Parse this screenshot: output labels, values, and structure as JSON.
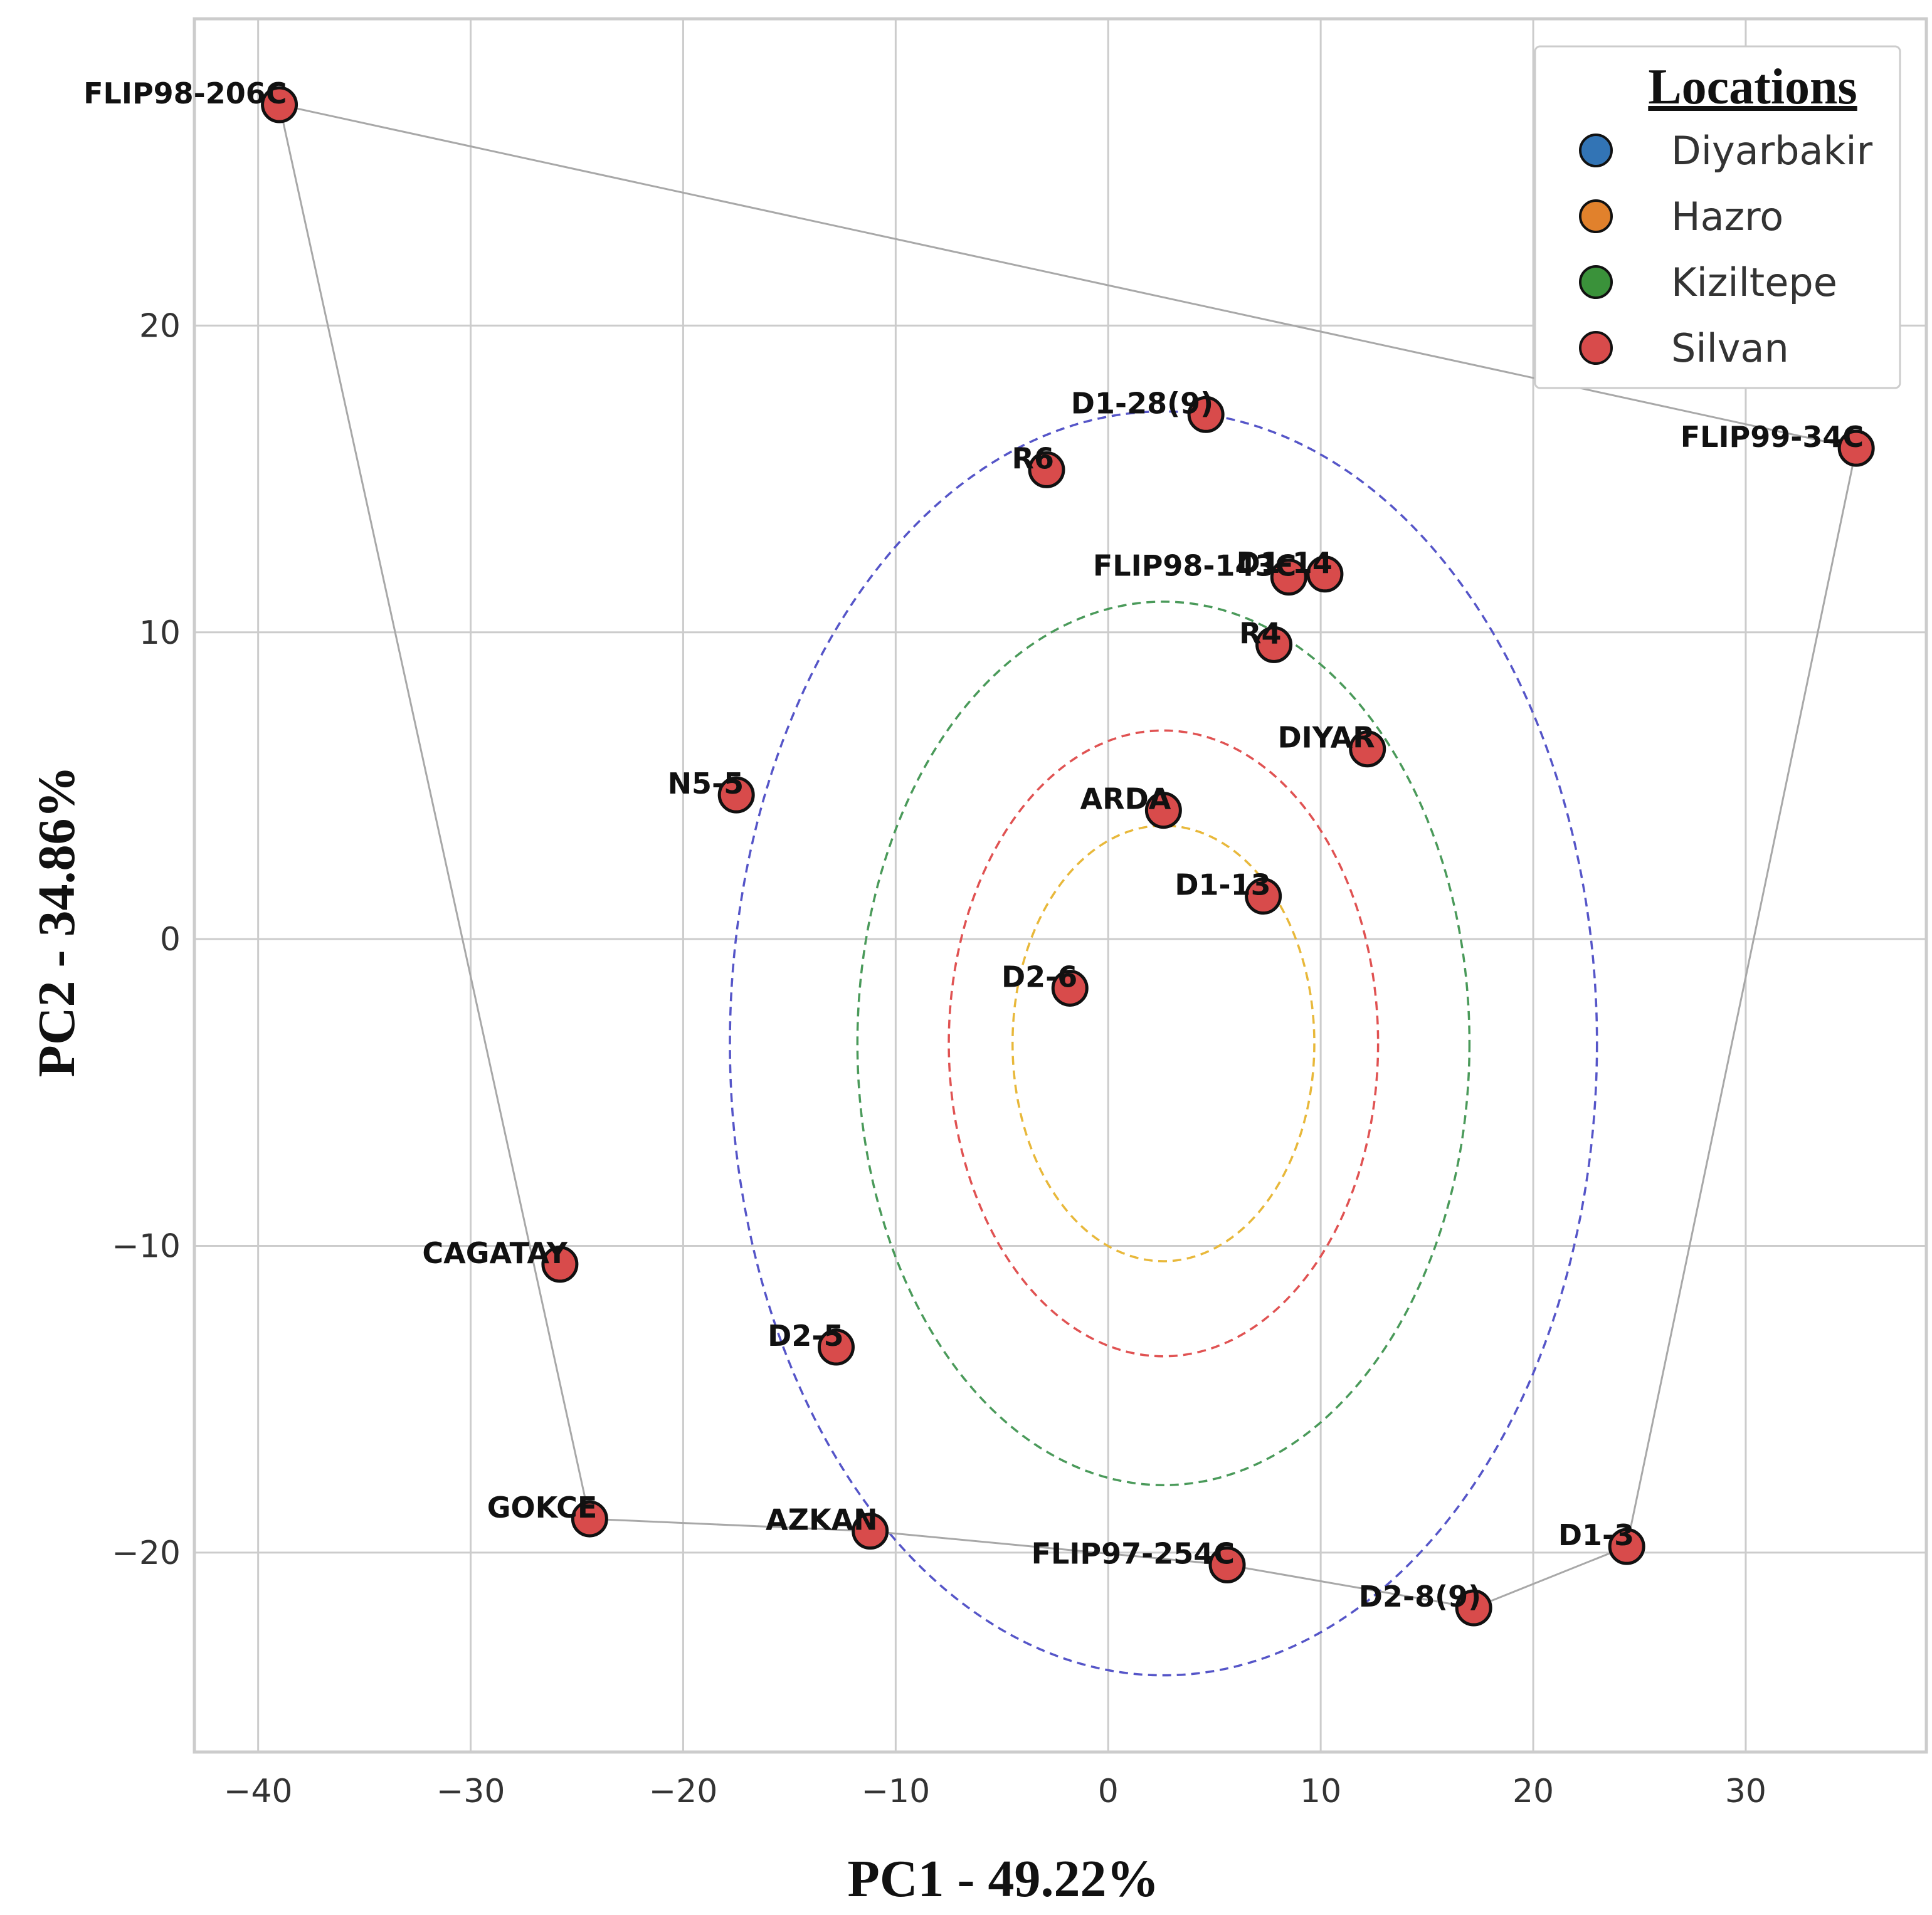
{
  "chart_data": {
    "type": "scatter",
    "xlabel": "PC1 - 49.22%",
    "ylabel": "PC2 - 34.86%",
    "xlim": [
      -43,
      38.5
    ],
    "ylim": [
      -26.5,
      30
    ],
    "xticks": [
      -40,
      -30,
      -20,
      -10,
      0,
      10,
      20,
      30
    ],
    "yticks": [
      -20,
      -10,
      0,
      10,
      20
    ],
    "grid": true,
    "legend": {
      "title": "Locations",
      "position": "top-right",
      "entries": [
        {
          "name": "Diyarbakir",
          "color": "#3274b5"
        },
        {
          "name": "Hazro",
          "color": "#e1812c"
        },
        {
          "name": "Kiziltepe",
          "color": "#3a923a"
        },
        {
          "name": "Silvan",
          "color": "#d84b4b"
        }
      ]
    },
    "points": [
      {
        "label": "FLIP98-206C",
        "x": -39.0,
        "y": 27.2,
        "group": "Silvan"
      },
      {
        "label": "D1-28(9)",
        "x": 4.6,
        "y": 17.1,
        "group": "Silvan"
      },
      {
        "label": "FLIP99-34C",
        "x": 35.2,
        "y": 16.0,
        "group": "Silvan"
      },
      {
        "label": "R6",
        "x": -2.9,
        "y": 15.3,
        "group": "Silvan"
      },
      {
        "label": "FLIP98-143C",
        "x": 8.5,
        "y": 11.8,
        "group": "Silvan"
      },
      {
        "label": "D1-14",
        "x": 10.2,
        "y": 11.9,
        "group": "Silvan"
      },
      {
        "label": "R4",
        "x": 7.8,
        "y": 9.6,
        "group": "Silvan"
      },
      {
        "label": "DIYAR",
        "x": 12.2,
        "y": 6.2,
        "group": "Silvan"
      },
      {
        "label": "N5-5",
        "x": -17.5,
        "y": 4.7,
        "group": "Silvan"
      },
      {
        "label": "ARDA",
        "x": 2.6,
        "y": 4.2,
        "group": "Silvan"
      },
      {
        "label": "D1-13",
        "x": 7.3,
        "y": 1.4,
        "group": "Silvan"
      },
      {
        "label": "D2-6",
        "x": -1.8,
        "y": -1.6,
        "group": "Silvan"
      },
      {
        "label": "CAGATAY",
        "x": -25.8,
        "y": -10.6,
        "group": "Silvan"
      },
      {
        "label": "D2-5",
        "x": -12.8,
        "y": -13.3,
        "group": "Silvan"
      },
      {
        "label": "GOKCE",
        "x": -24.4,
        "y": -18.9,
        "group": "Silvan"
      },
      {
        "label": "AZKAN",
        "x": -11.2,
        "y": -19.3,
        "group": "Silvan"
      },
      {
        "label": "FLIP97-254C",
        "x": 5.6,
        "y": -20.4,
        "group": "Silvan"
      },
      {
        "label": "D2-8(9)",
        "x": 17.2,
        "y": -21.8,
        "group": "Silvan"
      },
      {
        "label": "D1-3",
        "x": 24.4,
        "y": -19.8,
        "group": "Silvan"
      }
    ],
    "hull": [
      "FLIP98-206C",
      "FLIP99-34C",
      "D1-3",
      "D2-8(9)",
      "FLIP97-254C",
      "AZKAN",
      "GOKCE",
      "FLIP98-206C"
    ],
    "ellipses": [
      {
        "cx": 2.6,
        "cy": -3.4,
        "rx": 7.1,
        "ry": 7.1,
        "color": "#e8b83a"
      },
      {
        "cx": 2.6,
        "cy": -3.4,
        "rx": 10.1,
        "ry": 10.2,
        "color": "#e05252"
      },
      {
        "cx": 2.6,
        "cy": -3.4,
        "rx": 14.4,
        "ry": 14.4,
        "color": "#4a9a5a"
      },
      {
        "cx": 2.6,
        "cy": -3.4,
        "rx": 20.4,
        "ry": 20.6,
        "color": "#5555c8"
      }
    ]
  }
}
